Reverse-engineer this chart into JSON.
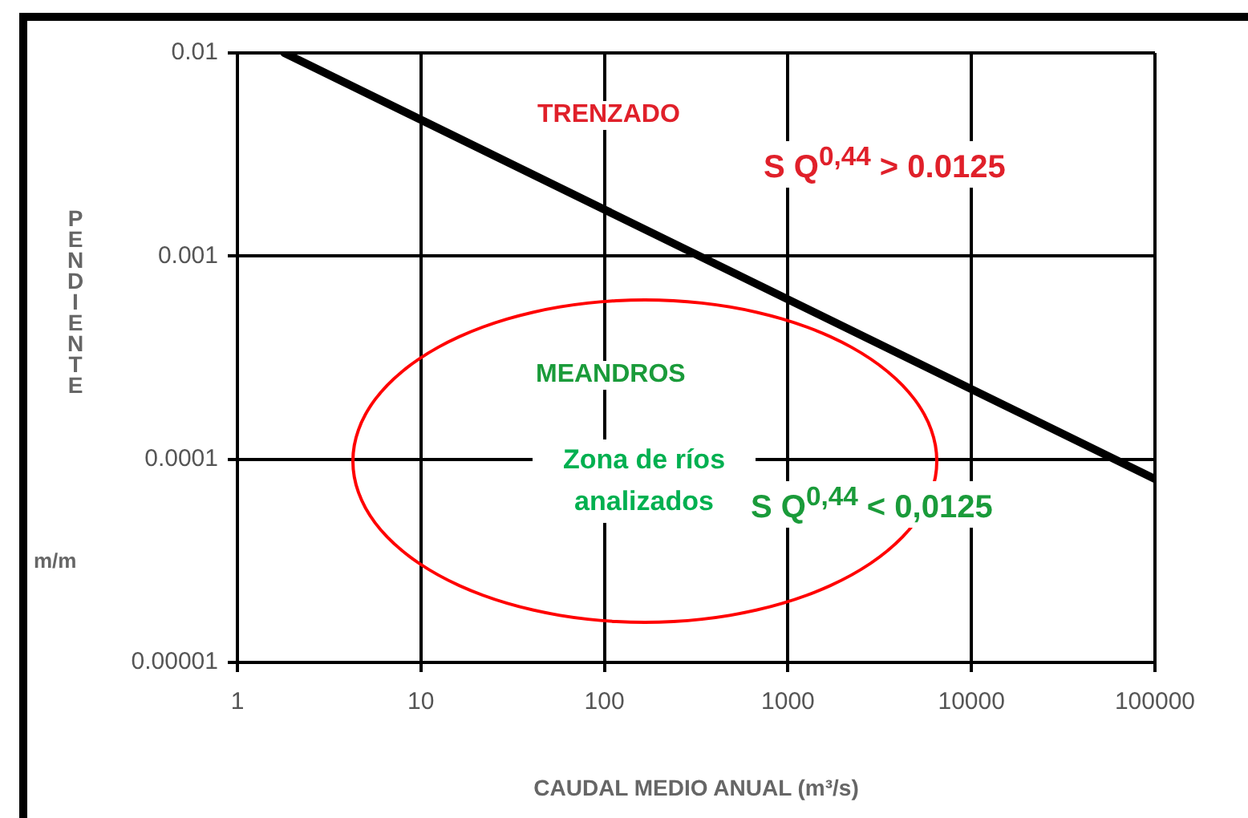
{
  "chart_data": {
    "type": "line",
    "xlabel": "CAUDAL MEDIO ANUAL (m³/s)",
    "ylabel": "PENDIENTE m/m",
    "log": "xy",
    "grid": true,
    "marker": "none",
    "line_style": "solid",
    "xlim": [
      1,
      100000
    ],
    "xticks": [
      1,
      10,
      100,
      1000,
      10000,
      100000
    ],
    "ylim": [
      1e-05,
      0.01
    ],
    "yticks": [
      {
        "value": 1e-05,
        "label": "0.00001"
      },
      {
        "value": 0.0001,
        "label": "0.0001"
      },
      {
        "value": 0.001,
        "label": "0.001"
      },
      {
        "value": 0.01,
        "label": "0.01"
      }
    ],
    "series": [
      {
        "color": "#000000",
        "x": [
          1.8,
          100000
        ],
        "values": [
          0.01,
          8e-05
        ]
      }
    ],
    "annotations": [
      "TRENZADO",
      "S Q$^{0,44}$ > 0.0125",
      "MEANDROS",
      "Zona de ríos analizados",
      "S Q$^{0,44}$ < 0,0125"
    ]
  }
}
